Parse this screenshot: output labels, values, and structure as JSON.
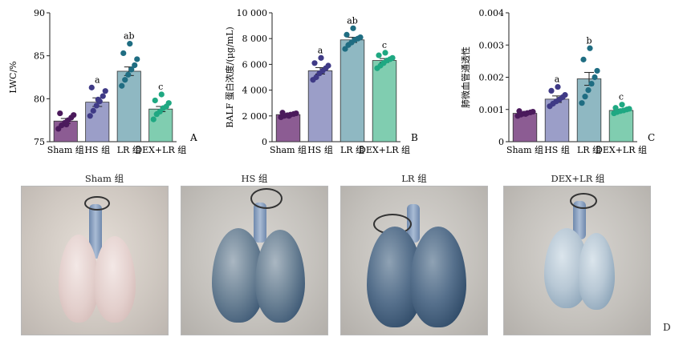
{
  "chart_data": [
    {
      "type": "bar",
      "panel": "A",
      "ylabel": "LWC/%",
      "ylim": [
        75,
        90
      ],
      "yticks": [
        75,
        80,
        85,
        90
      ],
      "categories": [
        "Sham 组",
        "HS 组",
        "LR 组",
        "DEX+LR 组"
      ],
      "colors": [
        "#8c5c93",
        "#9b9ec8",
        "#8fb8c2",
        "#80cdb0"
      ],
      "dot_colors": [
        "#4b1a5c",
        "#3f3a86",
        "#1f6d82",
        "#1fa882"
      ],
      "values": [
        77.4,
        79.6,
        83.2,
        78.8
      ],
      "errors": [
        0.3,
        0.5,
        0.5,
        0.3
      ],
      "significance": [
        "",
        "a",
        "ab",
        "c"
      ],
      "points": [
        [
          76.5,
          76.9,
          77.2,
          77.5,
          77.8,
          78.1,
          78.3,
          77.0
        ],
        [
          78.0,
          78.6,
          79.2,
          79.7,
          80.3,
          80.9,
          81.3,
          79.9
        ],
        [
          81.5,
          82.2,
          82.8,
          83.4,
          83.9,
          84.6,
          85.3,
          86.4
        ],
        [
          77.6,
          78.2,
          78.5,
          78.9,
          79.1,
          79.5,
          79.8,
          80.5
        ]
      ]
    },
    {
      "type": "bar",
      "panel": "B",
      "ylabel": "BALF 蛋白浓度/(μg/mL)",
      "ylim": [
        0,
        10000
      ],
      "yticks": [
        0,
        2000,
        4000,
        6000,
        8000,
        10000
      ],
      "ytick_labels": [
        "0",
        "2 000",
        "4 000",
        "6 000",
        "8 000",
        "10 000"
      ],
      "categories": [
        "Sham 组",
        "HS 组",
        "LR 组",
        "DEX+LR 组"
      ],
      "colors": [
        "#8c5c93",
        "#9b9ec8",
        "#8fb8c2",
        "#80cdb0"
      ],
      "dot_colors": [
        "#4b1a5c",
        "#3f3a86",
        "#1f6d82",
        "#1fa882"
      ],
      "values": [
        2100,
        5500,
        7900,
        6300
      ],
      "errors": [
        80,
        250,
        200,
        150
      ],
      "significance": [
        "",
        "a",
        "ab",
        "c"
      ],
      "points": [
        [
          1900,
          2000,
          2050,
          2100,
          2150,
          2200,
          2250,
          2000
        ],
        [
          4800,
          5000,
          5300,
          5500,
          5700,
          5900,
          6100,
          6500
        ],
        [
          7200,
          7500,
          7700,
          7900,
          8000,
          8100,
          8300,
          8800
        ],
        [
          5700,
          5900,
          6100,
          6300,
          6400,
          6500,
          6700,
          6900
        ]
      ]
    },
    {
      "type": "bar",
      "panel": "C",
      "ylabel": "肺微血管通透性",
      "ylim": [
        0,
        0.004
      ],
      "yticks": [
        0,
        0.001,
        0.002,
        0.003,
        0.004
      ],
      "ytick_labels": [
        "0",
        "0.001",
        "0.002",
        "0.003",
        "0.004"
      ],
      "categories": [
        "Sham 组",
        "HS 组",
        "LR 组",
        "DEX+LR 组"
      ],
      "colors": [
        "#8c5c93",
        "#9b9ec8",
        "#8fb8c2",
        "#80cdb0"
      ],
      "dot_colors": [
        "#4b1a5c",
        "#3f3a86",
        "#1f6d82",
        "#1fa882"
      ],
      "values": [
        0.00088,
        0.00132,
        0.00195,
        0.00097
      ],
      "errors": [
        3e-05,
        0.0001,
        0.0002,
        4e-05
      ],
      "significance": [
        "",
        "a",
        "b",
        "c"
      ],
      "points": [
        [
          0.0008,
          0.00084,
          0.00087,
          0.00089,
          0.00091,
          0.00093,
          0.00095,
          0.00086
        ],
        [
          0.0011,
          0.00118,
          0.00125,
          0.00131,
          0.00138,
          0.00145,
          0.00158,
          0.0017
        ],
        [
          0.0012,
          0.0014,
          0.0016,
          0.0018,
          0.002,
          0.0022,
          0.00255,
          0.0029
        ],
        [
          0.00088,
          0.00092,
          0.00095,
          0.00097,
          0.001,
          0.00102,
          0.00105,
          0.00115
        ]
      ]
    }
  ],
  "photos": {
    "panel": "D",
    "titles": [
      "Sham 组",
      "HS 组",
      "LR 组",
      "DEX+LR 组"
    ]
  }
}
